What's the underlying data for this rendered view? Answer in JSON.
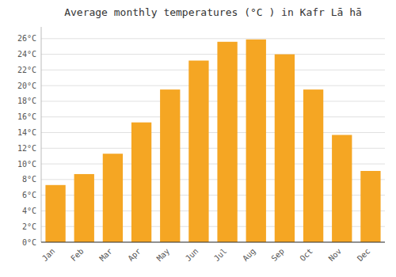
{
  "chart_data": {
    "type": "bar",
    "title": "Average monthly temperatures (°C ) in Kafr Lā hā",
    "categories": [
      "Jan",
      "Feb",
      "Mar",
      "Apr",
      "May",
      "Jun",
      "Jul",
      "Aug",
      "Sep",
      "Oct",
      "Nov",
      "Dec"
    ],
    "values": [
      7.3,
      8.7,
      11.3,
      15.3,
      19.5,
      23.2,
      25.6,
      25.9,
      24.0,
      19.5,
      13.7,
      9.1
    ],
    "color": "#F5A623",
    "ylim": [
      0,
      27.5
    ],
    "yticks": [
      {
        "value": 0,
        "label": "0°C"
      },
      {
        "value": 2,
        "label": "2°C"
      },
      {
        "value": 4,
        "label": "4°C"
      },
      {
        "value": 6,
        "label": "6°C"
      },
      {
        "value": 8,
        "label": "8°C"
      },
      {
        "value": 10,
        "label": "10°C"
      },
      {
        "value": 12,
        "label": "12°C"
      },
      {
        "value": 14,
        "label": "14°C"
      },
      {
        "value": 16,
        "label": "16°C"
      },
      {
        "value": 18,
        "label": "18°C"
      },
      {
        "value": 20,
        "label": "20°C"
      },
      {
        "value": 22,
        "label": "22°C"
      },
      {
        "value": 24,
        "label": "24°C"
      },
      {
        "value": 26,
        "label": "26°C"
      }
    ],
    "grid": true
  }
}
